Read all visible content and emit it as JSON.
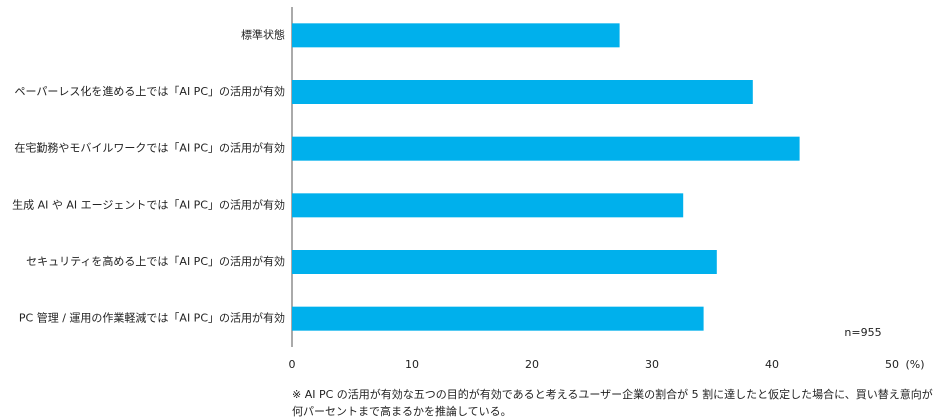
{
  "chart_data": {
    "type": "barh",
    "categories": [
      "標準状態",
      "ペーパーレス化を進める上では「AI PC」の活用が有効",
      "在宅勤務やモバイルワークでは「AI PC」の活用が有効",
      "生成 AI や AI エージェントでは「AI PC」の活用が有効",
      "セキュリティを高める上では「AI PC」の活用が有効",
      "PC 管理 / 運用の作業軽減では「AI PC」の活用が有効"
    ],
    "values": [
      27.3,
      38.4,
      42.3,
      32.6,
      35.4,
      34.3
    ],
    "color": "#00b0ec",
    "xlim": [
      0,
      50
    ],
    "xticks": [
      0,
      10,
      20,
      30,
      40,
      50
    ],
    "x_unit": "(%)",
    "annotation": "n=955",
    "footnote": "※ AI PC の活用が有効な五つの目的が有効であると考えるユーザー企業の割合が 5 割に達したと仮定した場合に、買い替え意向が何パーセントまで高まるかを推論している。"
  }
}
